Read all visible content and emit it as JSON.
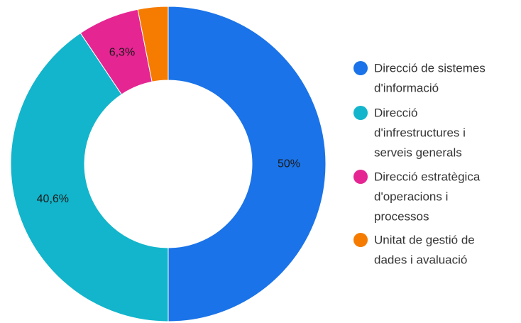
{
  "chart_data": {
    "type": "pie",
    "donut": true,
    "categories": [
      "Direcció de sistemes d'informació",
      "Direcció d'infrestructures i serveis generals",
      "Direcció estratègica d'operacions i processos",
      "Unitat de gestió de dades i avaluació"
    ],
    "legend_lines": [
      [
        "Direcció de sistemes",
        "d'informació"
      ],
      [
        "Direcció",
        "d'infrestructures i",
        "serveis generals"
      ],
      [
        "Direcció estratègica",
        "d'operacions i",
        "processos"
      ],
      [
        "Unitat de gestió de",
        "dades i avaluació"
      ]
    ],
    "values": [
      50,
      40.6,
      6.3,
      3.1
    ],
    "labels": [
      "50%",
      "40,6%",
      "6,3%",
      ""
    ],
    "colors": [
      "#1a73e8",
      "#12b5cb",
      "#e52592",
      "#f57c00"
    ],
    "legend_position": "right"
  }
}
